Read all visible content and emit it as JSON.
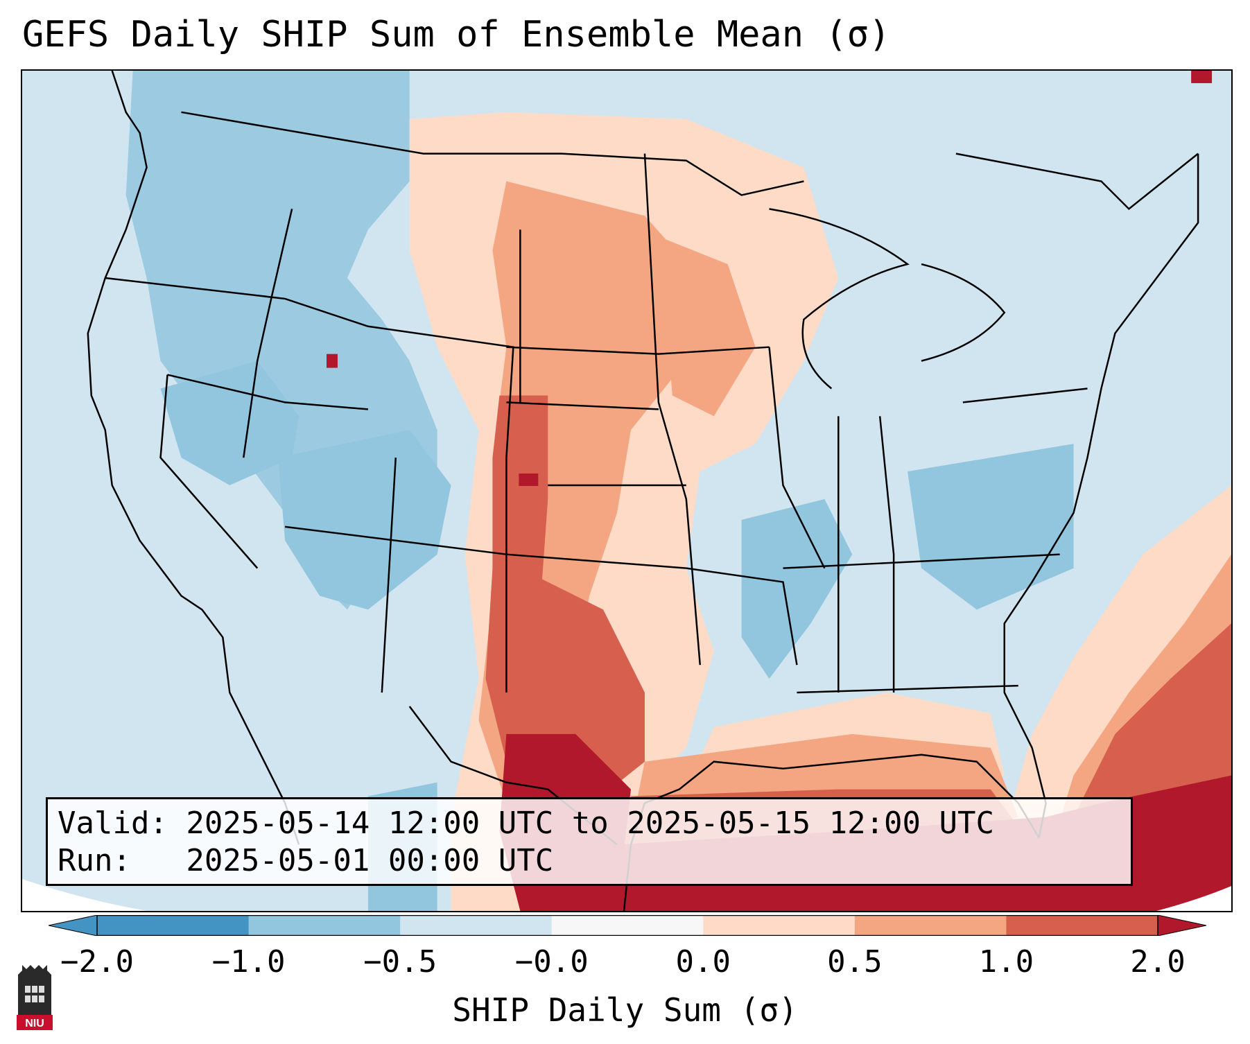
{
  "title": "GEFS Daily SHIP Sum of Ensemble Mean (σ)",
  "info": {
    "valid_line": "Valid: 2025-05-14 12:00 UTC to 2025-05-15 12:00 UTC",
    "run_line": "Run:   2025-05-01 00:00 UTC"
  },
  "colorbar": {
    "label": "SHIP Daily Sum (σ)",
    "ticks": [
      "−2.0",
      "−1.0",
      "−0.5",
      "−0.0",
      "0.0",
      "0.5",
      "1.0",
      "2.0"
    ],
    "bins": [
      {
        "range": "< -2.0",
        "color": "#4393c3"
      },
      {
        "range": "-2.0 to -1.0",
        "color": "#4393c3"
      },
      {
        "range": "-1.0 to -0.5",
        "color": "#92c5de"
      },
      {
        "range": "-0.5 to -0.0",
        "color": "#d1e5f0"
      },
      {
        "range": "-0.0 to 0.0",
        "color": "#f7f7f7"
      },
      {
        "range": "0.0 to 0.5",
        "color": "#fddbc7"
      },
      {
        "range": "0.5 to 1.0",
        "color": "#f4a582"
      },
      {
        "range": "1.0 to 2.0",
        "color": "#d6604d"
      },
      {
        "range": "> 2.0",
        "color": "#b2182b"
      }
    ]
  },
  "map": {
    "region": "Continental United States",
    "field": "SHIP daily sum anomaly (σ)"
  },
  "logo": {
    "text": "NIU"
  }
}
